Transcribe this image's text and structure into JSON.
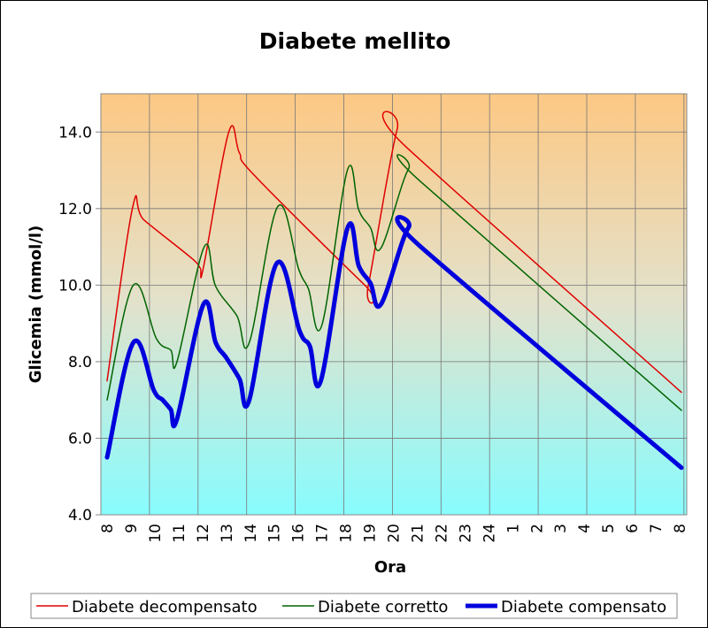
{
  "chart_data": {
    "type": "line",
    "title": "Diabete mellito",
    "xlabel": "Ora",
    "ylabel": "Glicemia (mmol/l)",
    "ylim": [
      4,
      15
    ],
    "yticks": [
      "4.0",
      "6.0",
      "8.0",
      "10.0",
      "12.0",
      "14.0"
    ],
    "ytick_values": [
      4,
      6,
      8,
      10,
      12,
      14
    ],
    "categories": [
      "8",
      "9",
      "10",
      "11",
      "12",
      "13",
      "14",
      "15",
      "16",
      "17",
      "18",
      "19",
      "20",
      "21",
      "22",
      "23",
      "24",
      "1",
      "2",
      "3",
      "4",
      "5",
      "6",
      "7",
      "8"
    ],
    "grid": true,
    "legend_position": "bottom",
    "series": [
      {
        "name": "Diabete decompensato",
        "color": "#e00000",
        "width": 1.5,
        "points": [
          [
            0,
            7.5
          ],
          [
            1.07,
            12.03
          ],
          [
            1.55,
            11.7
          ],
          [
            3.55,
            10.7
          ],
          [
            3.9,
            10.45
          ],
          [
            4.05,
            10.5
          ],
          [
            5.1,
            14.0
          ],
          [
            5.55,
            13.45
          ],
          [
            6.2,
            12.85
          ],
          [
            10.8,
            10.0
          ],
          [
            10.95,
            10.0
          ],
          [
            12.15,
            14.05
          ],
          [
            12.55,
            13.6
          ],
          [
            24.07,
            7.2
          ]
        ]
      },
      {
        "name": "Diabete corretto",
        "color": "#006400",
        "width": 1.5,
        "points": [
          [
            0,
            7.0
          ],
          [
            1.1,
            10.0
          ],
          [
            2.07,
            8.6
          ],
          [
            2.67,
            8.3
          ],
          [
            2.93,
            8.0
          ],
          [
            4.07,
            11.0
          ],
          [
            4.55,
            9.97
          ],
          [
            5.44,
            9.2
          ],
          [
            5.96,
            8.5
          ],
          [
            7.15,
            12.05
          ],
          [
            8.04,
            10.4
          ],
          [
            8.44,
            9.9
          ],
          [
            9.0,
            8.95
          ],
          [
            10.07,
            13.0
          ],
          [
            10.55,
            11.96
          ],
          [
            11.04,
            11.5
          ],
          [
            11.48,
            10.97
          ],
          [
            12.63,
            13.03
          ],
          [
            13.15,
            12.7
          ],
          [
            24.07,
            6.73
          ]
        ]
      },
      {
        "name": "Diabete compensato",
        "color": "#0000dd",
        "width": 5,
        "points": [
          [
            0,
            5.5
          ],
          [
            1.1,
            8.5
          ],
          [
            1.96,
            7.25
          ],
          [
            2.33,
            7.0
          ],
          [
            2.67,
            6.75
          ],
          [
            2.93,
            6.5
          ],
          [
            4.04,
            9.5
          ],
          [
            4.55,
            8.5
          ],
          [
            5.0,
            8.1
          ],
          [
            5.55,
            7.55
          ],
          [
            5.96,
            7.0
          ],
          [
            7.11,
            10.57
          ],
          [
            8.07,
            8.8
          ],
          [
            8.5,
            8.4
          ],
          [
            8.96,
            7.5
          ],
          [
            10.07,
            11.48
          ],
          [
            10.55,
            10.5
          ],
          [
            11.04,
            10.05
          ],
          [
            11.48,
            9.5
          ],
          [
            12.63,
            11.5
          ],
          [
            13.15,
            11.0
          ],
          [
            24.07,
            5.23
          ]
        ]
      }
    ]
  }
}
